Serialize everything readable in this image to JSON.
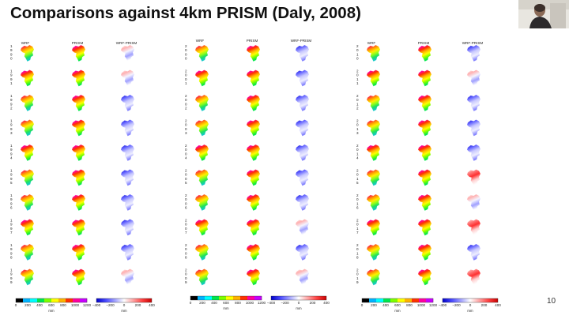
{
  "slide": {
    "title": "Comparisons against 4km PRISM (Daly, 2008)",
    "page_number": "10"
  },
  "column_headers": [
    "WRF",
    "PRISM",
    "WRF-PRISM"
  ],
  "panels": [
    {
      "years": [
        "1990",
        "1991",
        "1992",
        "1993",
        "1994",
        "1995",
        "1996",
        "1997",
        "1998",
        "1999"
      ]
    },
    {
      "years": [
        "2000",
        "2001",
        "2002",
        "2003",
        "2004",
        "2005",
        "2006",
        "2007",
        "2008",
        "2009"
      ]
    },
    {
      "years": [
        "2010",
        "2011",
        "2012",
        "2013",
        "2014",
        "2015",
        "2016",
        "2017",
        "2018",
        "2019"
      ]
    }
  ],
  "colorbars": {
    "precip": {
      "ticks": [
        "0",
        "200",
        "400",
        "600",
        "800",
        "1000",
        "1200"
      ],
      "unit": "mm"
    },
    "difference": {
      "ticks": [
        "−400",
        "−200",
        "0",
        "200",
        "400"
      ],
      "unit": "mm"
    }
  },
  "colors": {
    "precip_scale": [
      "#ffffff",
      "#000000",
      "#00b4ff",
      "#00ffff",
      "#00e64d",
      "#7dff00",
      "#ffff00",
      "#ffb300",
      "#ff3200",
      "#ff00a0",
      "#c800ff",
      "#f0a0ff"
    ],
    "diff_scale": [
      "#0000c8",
      "#4a4aff",
      "#a0a0ff",
      "#ffffff",
      "#ffa0a0",
      "#ff4040",
      "#c80000"
    ]
  },
  "icons": {
    "webcam": "presenter-webcam-image"
  }
}
